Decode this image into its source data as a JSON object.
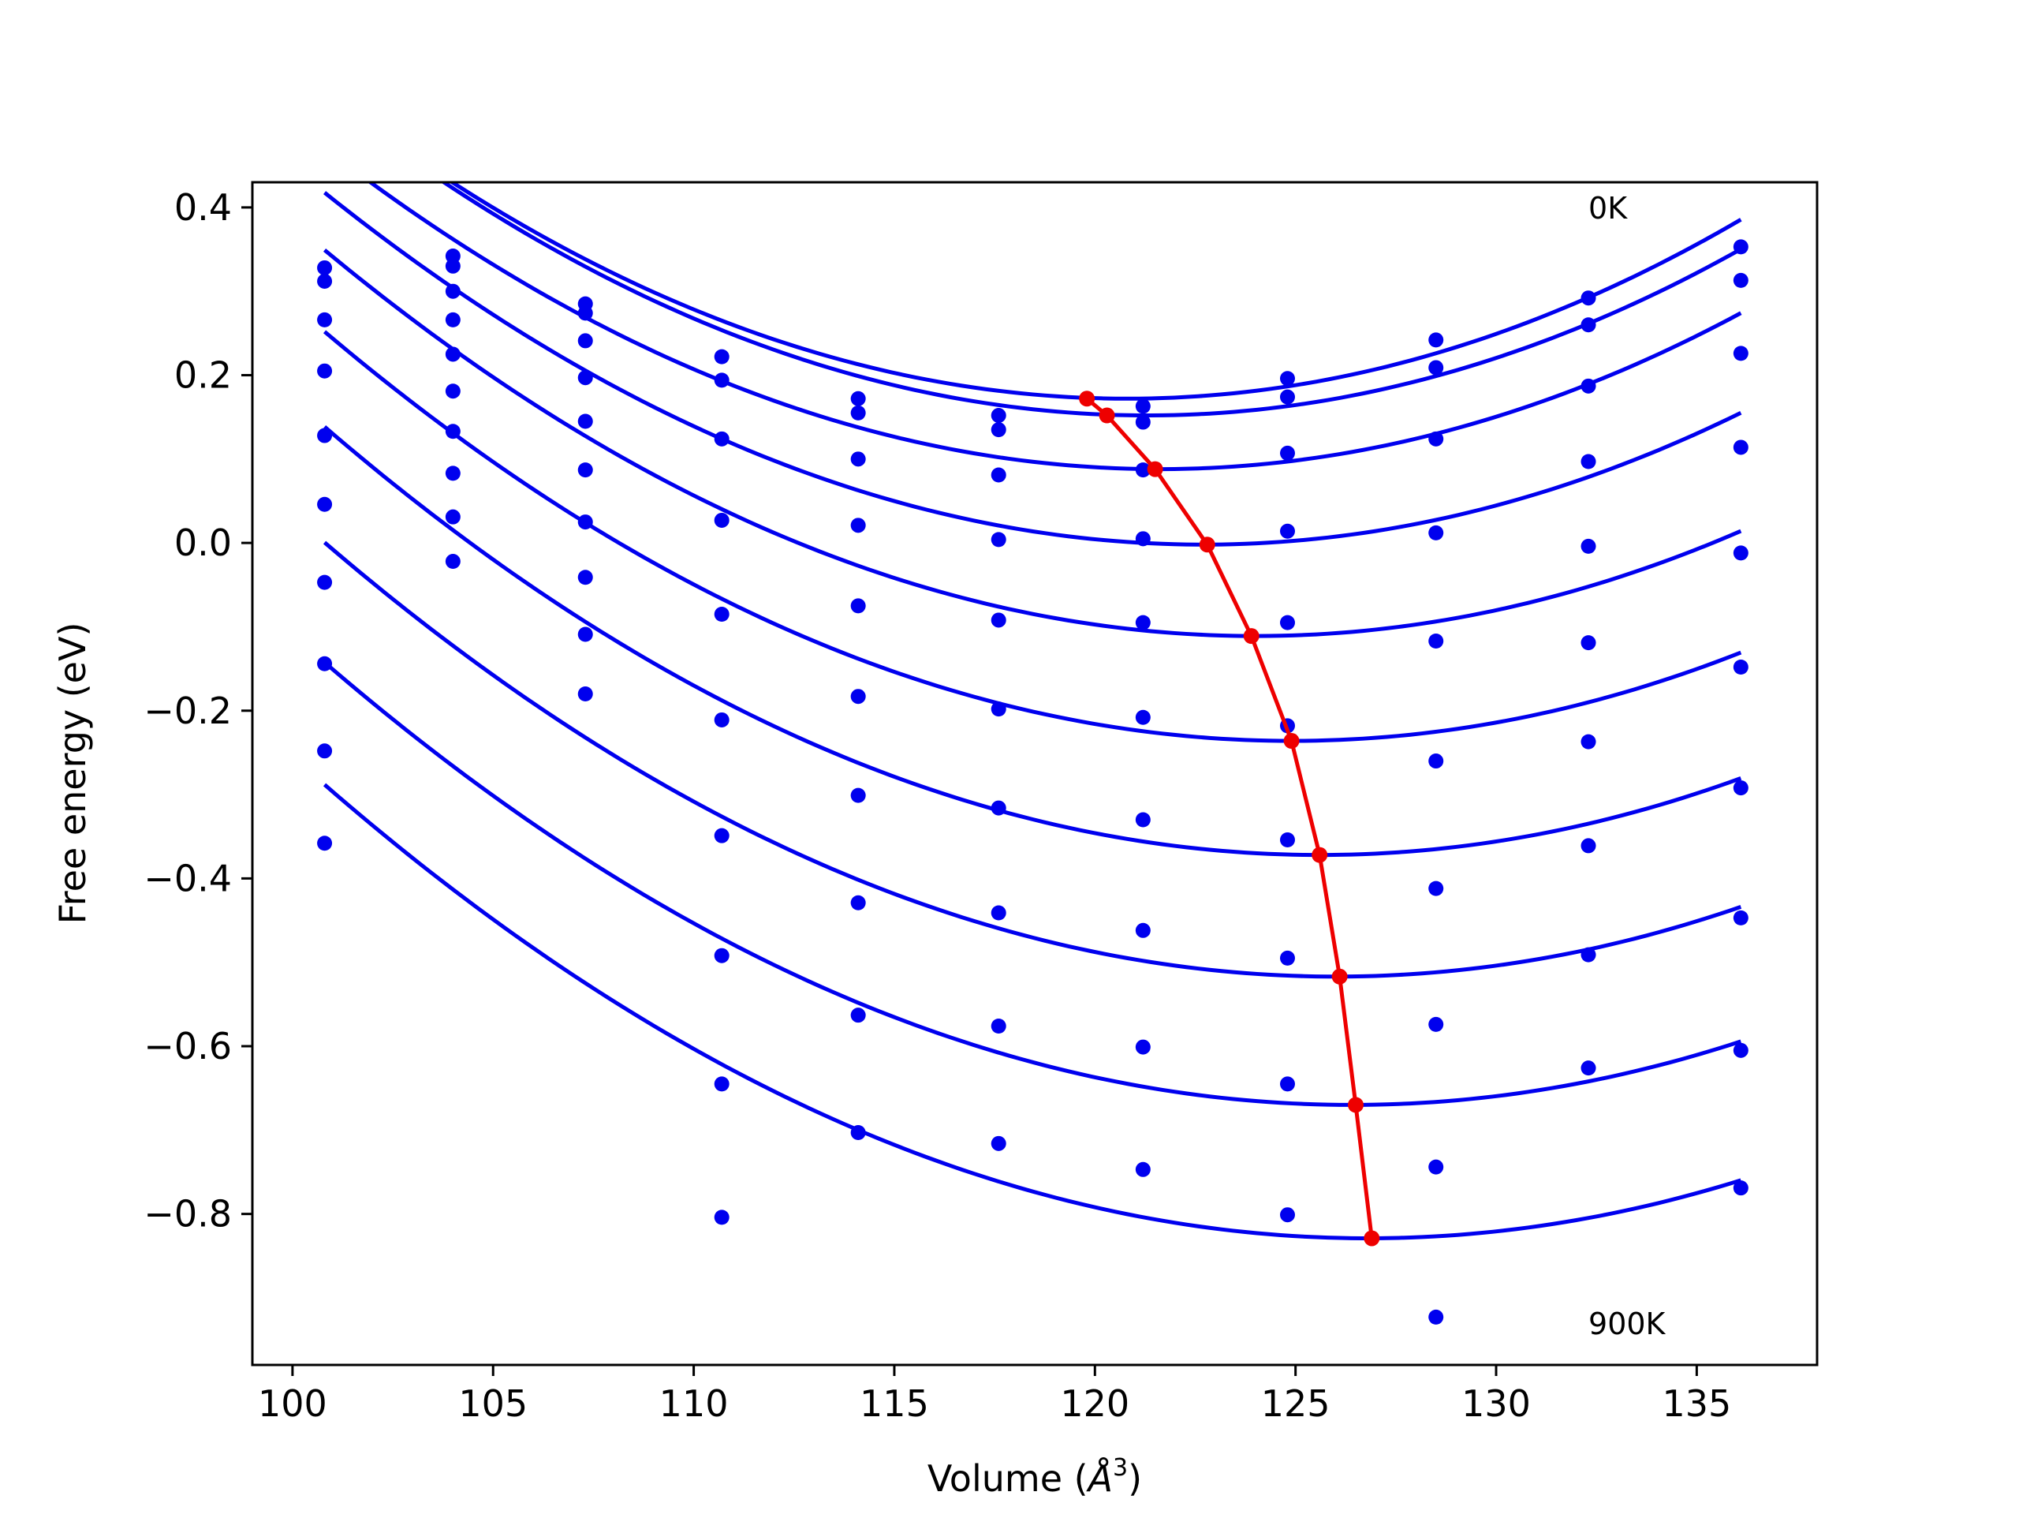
{
  "chart_data": {
    "type": "scatter",
    "title": "",
    "xlabel": "Volume (",
    "xlabel_symbol": "Å",
    "xlabel_superscript": "3",
    "xlabel_close": ")",
    "ylabel": "Free energy (eV)",
    "xlim": [
      99.0,
      138.0
    ],
    "ylim": [
      -0.98,
      0.43
    ],
    "xticks": [
      100,
      105,
      110,
      115,
      120,
      125,
      130,
      135
    ],
    "yticks": [
      0.4,
      0.2,
      0.0,
      -0.2,
      -0.4,
      -0.6,
      -0.8
    ],
    "ytick_labels": [
      "0.4",
      "0.2",
      "0.0",
      "−0.2",
      "−0.4",
      "−0.6",
      "−0.8"
    ],
    "grid": false,
    "legend": "none",
    "annotations": [
      {
        "text": "0K",
        "x": 132.3,
        "y": 0.4
      },
      {
        "text": "900K",
        "x": 132.3,
        "y": -0.93
      }
    ],
    "colors": {
      "curves": "#0000ee",
      "points": "#0000ee",
      "minima": "#ee0000"
    },
    "volumes": [
      100.8,
      104.0,
      107.3,
      110.7,
      114.1,
      117.6,
      121.2,
      124.8,
      128.5,
      132.3,
      136.1
    ],
    "series": [
      {
        "curve": {
          "a": 0.000912,
          "v0": 120.8,
          "e0": 0.172
        },
        "points": [
          0.328,
          0.342,
          0.285,
          0.222,
          0.172,
          0.152,
          0.163,
          0.196,
          0.242,
          0.292,
          0.353
        ]
      },
      {
        "curve": {
          "a": 0.000905,
          "v0": 121.3,
          "e0": 0.152
        },
        "points": [
          0.312,
          0.33,
          0.274,
          0.194,
          0.155,
          0.135,
          0.144,
          0.174,
          0.209,
          0.26,
          0.313
        ]
      },
      {
        "curve": {
          "a": 0.000885,
          "v0": 121.6,
          "e0": 0.088
        },
        "points": [
          0.266,
          0.3,
          0.241,
          0.124,
          0.1,
          0.081,
          0.087,
          0.107,
          0.124,
          0.187,
          0.226
        ]
      },
      {
        "curve": {
          "a": 0.000875,
          "v0": 122.7,
          "e0": -0.002
        },
        "points": [
          0.205,
          0.266,
          0.197,
          0.027,
          0.021,
          0.004,
          0.005,
          0.014,
          0.012,
          0.097,
          0.114
        ]
      },
      {
        "curve": {
          "a": 0.000855,
          "v0": 124.0,
          "e0": -0.111
        },
        "points": [
          0.128,
          0.225,
          0.145,
          -0.085,
          -0.075,
          -0.092,
          -0.095,
          -0.095,
          -0.117,
          -0.004,
          -0.012
        ]
      },
      {
        "curve": {
          "a": 0.00084,
          "v0": 124.9,
          "e0": -0.236
        },
        "points": [
          0.046,
          0.181,
          0.087,
          -0.211,
          -0.183,
          -0.198,
          -0.208,
          -0.218,
          -0.26,
          -0.119,
          -0.148
        ]
      },
      {
        "curve": {
          "a": 0.00083,
          "v0": 125.6,
          "e0": -0.372
        },
        "points": [
          -0.047,
          0.133,
          0.025,
          -0.349,
          -0.301,
          -0.316,
          -0.33,
          -0.354,
          -0.412,
          -0.237,
          -0.292
        ]
      },
      {
        "curve": {
          "a": 0.000815,
          "v0": 126.0,
          "e0": -0.517
        },
        "points": [
          -0.144,
          0.083,
          -0.041,
          -0.492,
          -0.429,
          -0.441,
          -0.462,
          -0.495,
          -0.574,
          -0.361,
          -0.447
        ]
      },
      {
        "curve": {
          "a": 0.000805,
          "v0": 126.4,
          "e0": -0.67
        },
        "points": [
          -0.248,
          0.031,
          -0.109,
          -0.645,
          -0.563,
          -0.576,
          -0.601,
          -0.645,
          -0.744,
          -0.491,
          -0.605
        ]
      },
      {
        "curve": {
          "a": 0.0008,
          "v0": 126.8,
          "e0": -0.829
        },
        "points": [
          -0.358,
          -0.022,
          -0.18,
          -0.804,
          -0.703,
          -0.716,
          -0.747,
          -0.801,
          -0.923,
          -0.626,
          -0.769
        ]
      }
    ],
    "minima": {
      "x": [
        119.8,
        120.3,
        121.5,
        122.8,
        123.9,
        124.9,
        125.6,
        126.1,
        126.5,
        126.9
      ],
      "y": [
        0.172,
        0.152,
        0.088,
        -0.002,
        -0.111,
        -0.236,
        -0.372,
        -0.517,
        -0.67,
        -0.829
      ]
    }
  }
}
